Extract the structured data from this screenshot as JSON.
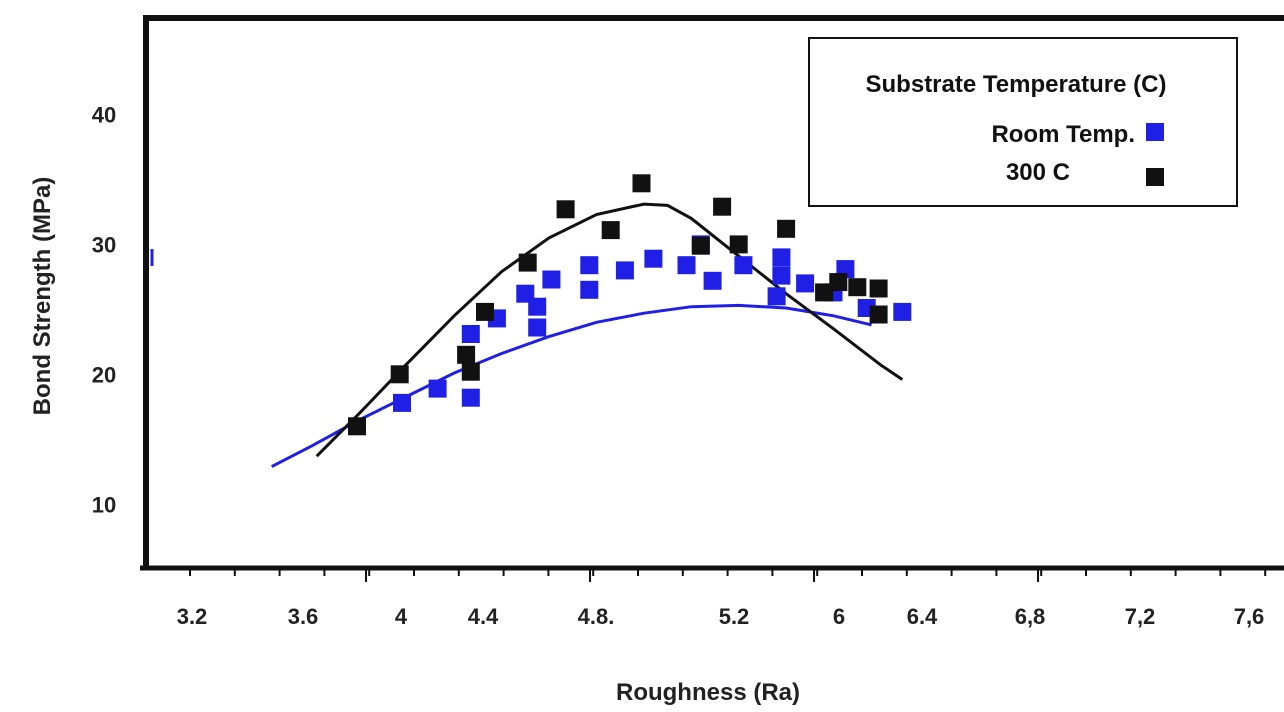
{
  "chart_data": {
    "type": "scatter",
    "xlabel": "Roughness (Ra)",
    "ylabel": "Bond Strength (MPa)",
    "xlim": [
      2.9,
      7.7
    ],
    "ylim": [
      5.1,
      48.8
    ],
    "x_ticks": [
      3.2,
      3.6,
      4,
      4.4,
      4.8,
      5.2,
      6,
      6.4,
      6.8,
      7.2,
      7.6
    ],
    "x_tick_labels": [
      "3.2",
      "3.6",
      "4",
      "4.4",
      "4.8.",
      "5.2",
      "6",
      "6.4",
      "6,8",
      "7,2",
      "7,6"
    ],
    "y_ticks": [
      10,
      20,
      30,
      40
    ],
    "y_tick_labels": [
      "10",
      "20",
      "30",
      "40"
    ],
    "grid": false,
    "legend_position": "top-right",
    "legend_title": "Substrate Temperature (C)",
    "colors": {
      "room_temp": "#1f1fe6",
      "c300": "#111111"
    },
    "series": [
      {
        "name": "Room Temp.",
        "color": "#1f1fe6",
        "points": [
          [
            3.98,
            17.8
          ],
          [
            4.13,
            18.9
          ],
          [
            4.27,
            18.2
          ],
          [
            4.27,
            23.1
          ],
          [
            4.38,
            24.3
          ],
          [
            4.5,
            26.2
          ],
          [
            4.55,
            23.6
          ],
          [
            4.55,
            25.2
          ],
          [
            4.61,
            27.3
          ],
          [
            4.77,
            26.5
          ],
          [
            4.77,
            28.4
          ],
          [
            4.92,
            28.0
          ],
          [
            5.04,
            28.9
          ],
          [
            5.18,
            28.4
          ],
          [
            5.24,
            30.0
          ],
          [
            5.29,
            27.2
          ],
          [
            5.42,
            28.4
          ],
          [
            5.56,
            26.0
          ],
          [
            5.58,
            27.6
          ],
          [
            5.58,
            29.0
          ],
          [
            5.68,
            27.0
          ],
          [
            5.8,
            26.3
          ],
          [
            5.85,
            28.1
          ],
          [
            5.94,
            25.1
          ],
          [
            6.09,
            24.8
          ]
        ]
      },
      {
        "name": "300 C",
        "color": "#111111",
        "points": [
          [
            3.79,
            16.0
          ],
          [
            3.97,
            20.0
          ],
          [
            4.25,
            21.5
          ],
          [
            4.27,
            20.2
          ],
          [
            4.33,
            24.8
          ],
          [
            4.51,
            28.6
          ],
          [
            4.67,
            32.7
          ],
          [
            4.86,
            31.1
          ],
          [
            4.99,
            34.7
          ],
          [
            5.24,
            29.9
          ],
          [
            5.33,
            32.9
          ],
          [
            5.4,
            30.0
          ],
          [
            5.6,
            31.2
          ],
          [
            5.76,
            26.3
          ],
          [
            5.82,
            27.1
          ],
          [
            5.9,
            26.7
          ],
          [
            5.99,
            26.6
          ],
          [
            5.99,
            24.6
          ]
        ]
      }
    ],
    "fits": [
      {
        "series": "Room Temp.",
        "color": "#1f1fe6",
        "points": [
          [
            3.43,
            12.9
          ],
          [
            3.6,
            14.5
          ],
          [
            3.8,
            16.5
          ],
          [
            4.0,
            18.3
          ],
          [
            4.2,
            20.1
          ],
          [
            4.4,
            21.6
          ],
          [
            4.6,
            22.9
          ],
          [
            4.8,
            24.0
          ],
          [
            5.0,
            24.7
          ],
          [
            5.2,
            25.2
          ],
          [
            5.4,
            25.3
          ],
          [
            5.6,
            25.1
          ],
          [
            5.8,
            24.5
          ],
          [
            5.96,
            23.8
          ]
        ]
      },
      {
        "series": "300 C",
        "color": "#111111",
        "points": [
          [
            3.62,
            13.7
          ],
          [
            3.8,
            17.0
          ],
          [
            4.0,
            20.8
          ],
          [
            4.2,
            24.5
          ],
          [
            4.4,
            27.9
          ],
          [
            4.6,
            30.5
          ],
          [
            4.8,
            32.3
          ],
          [
            5.0,
            33.1
          ],
          [
            5.1,
            33.0
          ],
          [
            5.2,
            32.0
          ],
          [
            5.4,
            29.1
          ],
          [
            5.6,
            26.2
          ],
          [
            5.8,
            23.5
          ],
          [
            6.0,
            20.7
          ],
          [
            6.09,
            19.6
          ]
        ]
      }
    ]
  }
}
